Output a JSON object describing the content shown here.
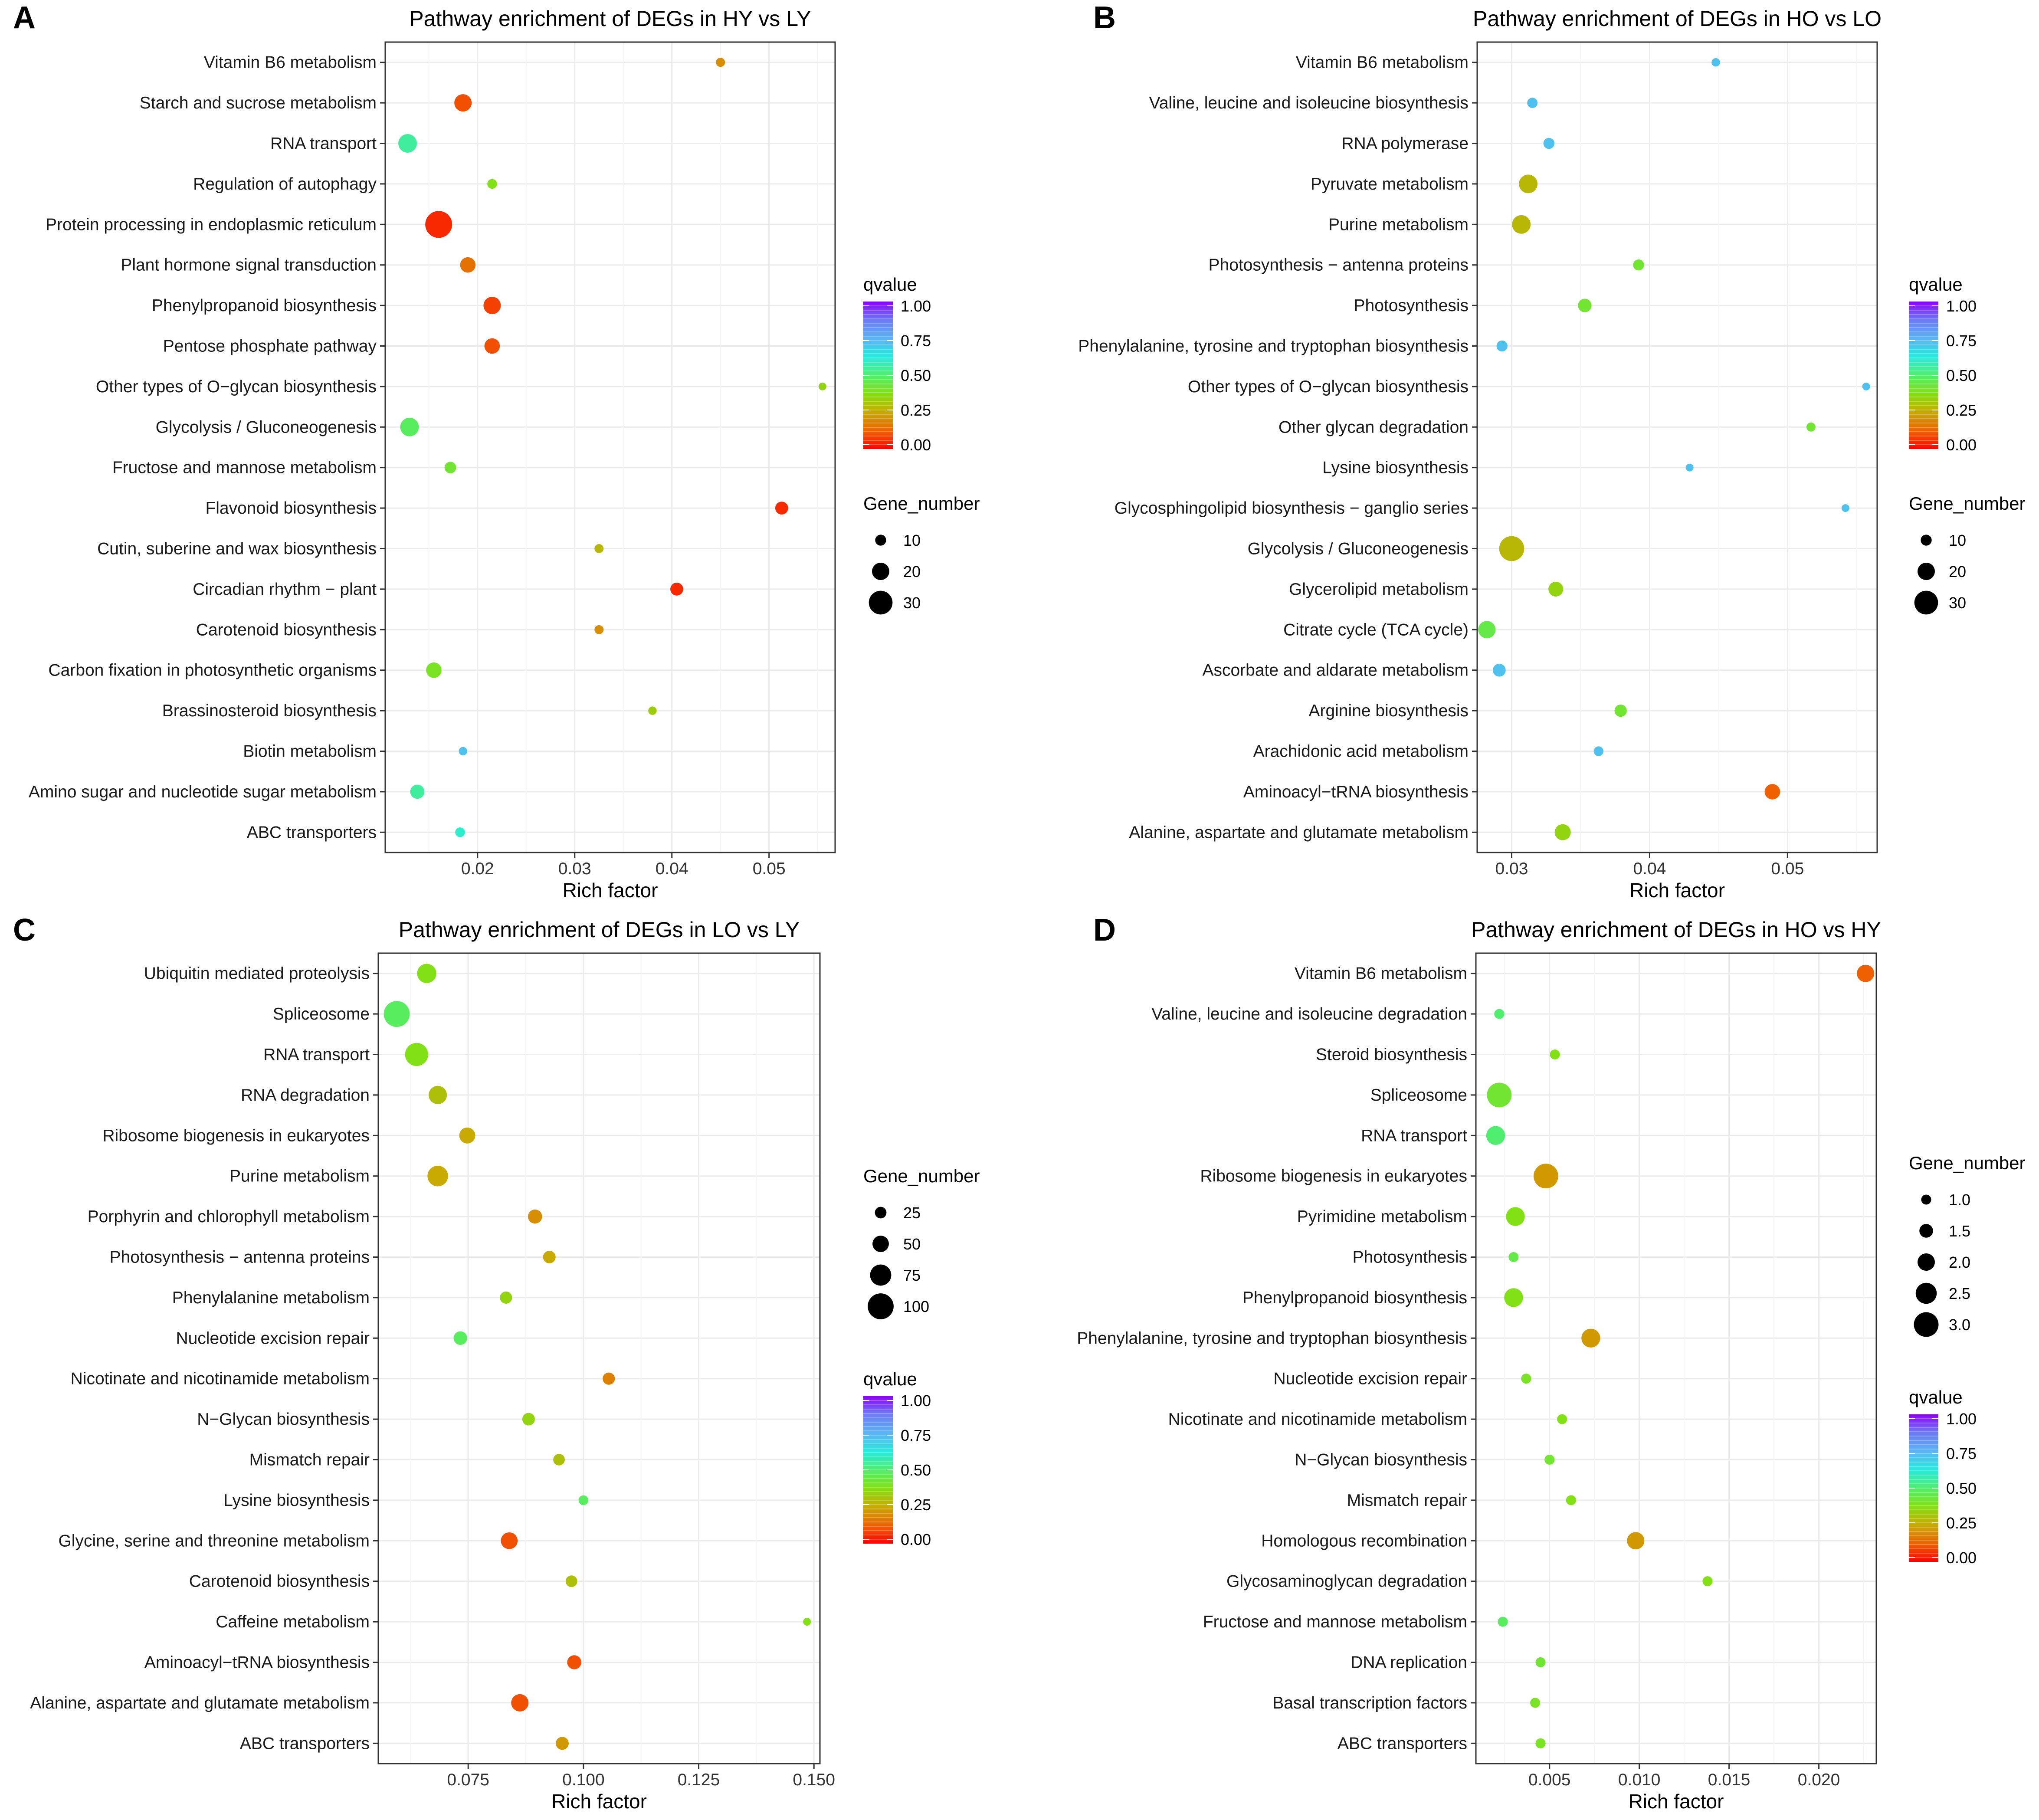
{
  "figure_title": "Pathway enrichment of DEGs",
  "chart_data": [
    {
      "panel": "A",
      "type": "scatter",
      "title": "Pathway enrichment of DEGs in HY vs LY",
      "xlabel": "Rich factor",
      "ylabel": "",
      "xlim": [
        0.0105,
        0.0568
      ],
      "xticks": [
        0.02,
        0.03,
        0.04,
        0.05
      ],
      "xtick_labels": [
        "0.02",
        "0.03",
        "0.04",
        "0.05"
      ],
      "size_legend": {
        "title": "Gene_number",
        "values": [
          10,
          20,
          30
        ],
        "labels": [
          "10",
          "20",
          "30"
        ]
      },
      "color_legend": {
        "title": "qvalue",
        "labels": [
          "1.00",
          "0.75",
          "0.50",
          "0.25",
          "0.00"
        ]
      },
      "legend_order": [
        "color",
        "size"
      ],
      "size_range": [
        5,
        35
      ],
      "categories": [
        "Vitamin B6 metabolism",
        "Starch and sucrose metabolism",
        "RNA transport",
        "Regulation of autophagy",
        "Protein processing in endoplasmic reticulum",
        "Plant hormone signal transduction",
        "Phenylpropanoid biosynthesis",
        "Pentose phosphate pathway",
        "Other types of O−glycan biosynthesis",
        "Glycolysis / Gluconeogenesis",
        "Fructose and mannose metabolism",
        "Flavonoid biosynthesis",
        "Cutin, suberine and wax biosynthesis",
        "Circadian rhythm − plant",
        "Carotenoid biosynthesis",
        "Carbon fixation in photosynthetic organisms",
        "Brassinosteroid biosynthesis",
        "Biotin metabolism",
        "Amino sugar and nucleotide sugar metabolism",
        "ABC transporters"
      ],
      "rich_factor": [
        0.045,
        0.0185,
        0.0128,
        0.0215,
        0.016,
        0.019,
        0.0215,
        0.0215,
        0.0555,
        0.013,
        0.0172,
        0.0513,
        0.0325,
        0.0405,
        0.0325,
        0.0155,
        0.038,
        0.0185,
        0.0138,
        0.0182
      ],
      "gene_number": [
        7,
        20,
        22,
        8,
        35,
        17,
        20,
        17,
        4,
        22,
        11,
        13,
        7,
        13,
        7,
        17,
        6,
        6,
        15,
        8
      ],
      "qvalue": [
        0.2,
        0.1,
        0.55,
        0.38,
        0.05,
        0.15,
        0.08,
        0.1,
        0.35,
        0.48,
        0.42,
        0.05,
        0.28,
        0.05,
        0.2,
        0.4,
        0.33,
        0.72,
        0.55,
        0.6
      ]
    },
    {
      "panel": "B",
      "type": "scatter",
      "title": "Pathway enrichment of DEGs in HO vs LO",
      "xlabel": "Rich factor",
      "ylabel": "",
      "xlim": [
        0.0275,
        0.0565
      ],
      "xticks": [
        0.03,
        0.04,
        0.05
      ],
      "xtick_labels": [
        "0.03",
        "0.04",
        "0.05"
      ],
      "size_legend": {
        "title": "Gene_number",
        "values": [
          10,
          20,
          30
        ],
        "labels": [
          "10",
          "20",
          "30"
        ]
      },
      "color_legend": {
        "title": "qvalue",
        "labels": [
          "1.00",
          "0.75",
          "0.50",
          "0.25",
          "0.00"
        ]
      },
      "legend_order": [
        "color",
        "size"
      ],
      "size_range": [
        5,
        35
      ],
      "categories": [
        "Vitamin B6 metabolism",
        "Valine, leucine and isoleucine biosynthesis",
        "RNA polymerase",
        "Pyruvate metabolism",
        "Purine metabolism",
        "Photosynthesis − antenna proteins",
        "Photosynthesis",
        "Phenylalanine, tyrosine and tryptophan biosynthesis",
        "Other types of O−glycan biosynthesis",
        "Other glycan degradation",
        "Lysine biosynthesis",
        "Glycosphingolipid biosynthesis − ganglio series",
        "Glycolysis / Gluconeogenesis",
        "Glycerolipid metabolism",
        "Citrate cycle (TCA cycle)",
        "Ascorbate and aldarate metabolism",
        "Arginine biosynthesis",
        "Arachidonic acid metabolism",
        "Aminoacyl−tRNA biosynthesis",
        "Alanine, aspartate and glutamate metabolism"
      ],
      "rich_factor": [
        0.0448,
        0.0315,
        0.0327,
        0.0312,
        0.0307,
        0.0392,
        0.0353,
        0.0293,
        0.0557,
        0.0517,
        0.0429,
        0.0542,
        0.03,
        0.0332,
        0.0282,
        0.0291,
        0.0379,
        0.0363,
        0.0489,
        0.0337
      ],
      "gene_number": [
        6,
        9,
        10,
        22,
        22,
        10,
        14,
        10,
        3,
        7,
        5,
        3,
        32,
        16,
        20,
        13,
        12,
        8,
        17,
        18
      ],
      "qvalue": [
        0.72,
        0.72,
        0.72,
        0.28,
        0.28,
        0.42,
        0.42,
        0.72,
        0.72,
        0.42,
        0.72,
        0.72,
        0.28,
        0.35,
        0.45,
        0.72,
        0.42,
        0.72,
        0.12,
        0.35
      ]
    },
    {
      "panel": "C",
      "type": "scatter",
      "title": "Pathway enrichment of DEGs in LO vs LY",
      "xlabel": "Rich factor",
      "ylabel": "",
      "xlim": [
        0.0555,
        0.1513
      ],
      "xticks": [
        0.075,
        0.1,
        0.125,
        0.15
      ],
      "xtick_labels": [
        "0.075",
        "0.100",
        "0.125",
        "0.150"
      ],
      "size_legend": {
        "title": "Gene_number",
        "values": [
          25,
          50,
          75,
          100
        ],
        "labels": [
          "25",
          "50",
          "75",
          "100"
        ]
      },
      "color_legend": {
        "title": "qvalue",
        "labels": [
          "1.00",
          "0.75",
          "0.50",
          "0.25",
          "0.00"
        ]
      },
      "legend_order": [
        "size",
        "color"
      ],
      "size_range": [
        5,
        105
      ],
      "categories": [
        "Ubiquitin mediated proteolysis",
        "Spliceosome",
        "RNA transport",
        "RNA degradation",
        "Ribosome biogenesis in eukaryotes",
        "Purine metabolism",
        "Porphyrin and chlorophyll metabolism",
        "Photosynthesis − antenna proteins",
        "Phenylalanine metabolism",
        "Nucleotide excision repair",
        "Nicotinate and nicotinamide metabolism",
        "N−Glycan biosynthesis",
        "Mismatch repair",
        "Lysine biosynthesis",
        "Glycine, serine and threonine metabolism",
        "Carotenoid biosynthesis",
        "Caffeine metabolism",
        "Aminoacyl−tRNA biosynthesis",
        "Alanine, aspartate and glutamate metabolism",
        "ABC transporters"
      ],
      "rich_factor": [
        0.066,
        0.0595,
        0.0638,
        0.0684,
        0.0748,
        0.0684,
        0.0895,
        0.0926,
        0.0832,
        0.0733,
        0.1055,
        0.0881,
        0.0947,
        0.1,
        0.0839,
        0.0974,
        0.1485,
        0.098,
        0.0862,
        0.0954
      ],
      "gene_number": [
        65,
        100,
        85,
        60,
        48,
        72,
        38,
        30,
        28,
        35,
        28,
        30,
        25,
        15,
        52,
        25,
        5,
        38,
        55,
        32
      ],
      "qvalue": [
        0.38,
        0.48,
        0.38,
        0.3,
        0.25,
        0.25,
        0.2,
        0.25,
        0.35,
        0.48,
        0.18,
        0.35,
        0.3,
        0.48,
        0.1,
        0.3,
        0.38,
        0.1,
        0.1,
        0.22
      ]
    },
    {
      "panel": "D",
      "type": "scatter",
      "title": "Pathway enrichment of DEGs in HO vs HY",
      "xlabel": "Rich factor",
      "ylabel": "",
      "xlim": [
        0.0009,
        0.0232
      ],
      "xticks": [
        0.005,
        0.01,
        0.015,
        0.02
      ],
      "xtick_labels": [
        "0.005",
        "0.010",
        "0.015",
        "0.020"
      ],
      "size_legend": {
        "title": "Gene_number",
        "values": [
          1.0,
          1.5,
          2.0,
          2.5,
          3.0
        ],
        "labels": [
          "1.0",
          "1.5",
          "2.0",
          "2.5",
          "3.0"
        ]
      },
      "color_legend": {
        "title": "qvalue",
        "labels": [
          "1.00",
          "0.75",
          "0.50",
          "0.25",
          "0.00"
        ]
      },
      "legend_order": [
        "size",
        "color"
      ],
      "size_range": [
        0.7,
        3.3
      ],
      "categories": [
        "Vitamin B6 metabolism",
        "Valine, leucine and isoleucine degradation",
        "Steroid biosynthesis",
        "Spliceosome",
        "RNA transport",
        "Ribosome biogenesis in eukaryotes",
        "Pyrimidine metabolism",
        "Photosynthesis",
        "Phenylpropanoid biosynthesis",
        "Phenylalanine, tyrosine and tryptophan biosynthesis",
        "Nucleotide excision repair",
        "Nicotinate and nicotinamide metabolism",
        "N−Glycan biosynthesis",
        "Mismatch repair",
        "Homologous recombination",
        "Glycosaminoglycan degradation",
        "Fructose and mannose metabolism",
        "DNA replication",
        "Basal transcription factors",
        "ABC transporters"
      ],
      "rich_factor": [
        0.0226,
        0.0022,
        0.0053,
        0.0022,
        0.002,
        0.0048,
        0.0031,
        0.003,
        0.003,
        0.0073,
        0.0037,
        0.0057,
        0.005,
        0.0062,
        0.0098,
        0.0138,
        0.0024,
        0.0045,
        0.0042,
        0.0045
      ],
      "gene_number": [
        2,
        1,
        1,
        3,
        2.2,
        3,
        2.2,
        1,
        2.2,
        2.2,
        1,
        1,
        1,
        1,
        2,
        1,
        1,
        1,
        1,
        1
      ],
      "qvalue": [
        0.12,
        0.5,
        0.38,
        0.42,
        0.5,
        0.22,
        0.38,
        0.45,
        0.38,
        0.22,
        0.4,
        0.38,
        0.42,
        0.38,
        0.22,
        0.38,
        0.48,
        0.42,
        0.4,
        0.4
      ]
    }
  ]
}
